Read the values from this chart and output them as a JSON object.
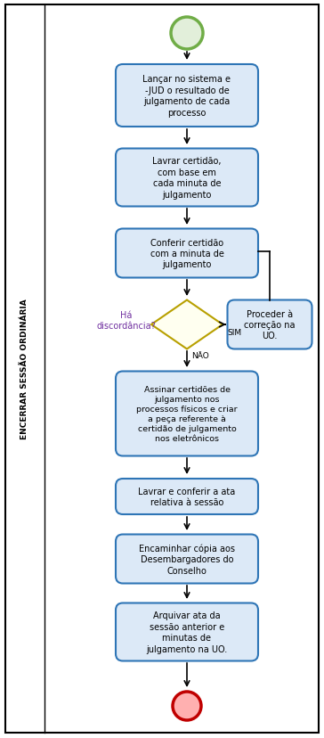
{
  "side_label": "ENCERRAR SESSÃO ORDINÁRIA",
  "bg_color": "#ffffff",
  "box_fill": "#dce9f7",
  "box_border": "#2e75b6",
  "diamond_fill": "#fffff0",
  "diamond_border": "#b8a000",
  "start_fill_outer": "#70ad47",
  "start_fill_inner": "#e2efda",
  "end_fill_outer": "#c00000",
  "end_fill_inner": "#ffb0b0",
  "arrow_color": "#000000",
  "text_color": "#000000",
  "decision_text_color": "#7030a0",
  "label_color": "#000000",
  "b1_text": "Lançar no sistema e\n-JUD o resultado de\njulgamento de cada\nprocesso",
  "b2_text": "Lavrar certidão,\ncom base em\ncada minuta de\njulgamento",
  "b3_text": "Conferir certidão\ncom a minuta de\njulgamento",
  "d1_text": "Há\ndiscordância?",
  "b4_text": "Proceder à\ncorreção na\nUO.",
  "b5_text": "Assinar certidões de\njulgamento nos\nprocessos físicos e criar\na peça referente à\ncertidão de julgamento\nnos eletrônicos",
  "b6_text": "Lavrar e conferir a ata\nrelativa à sessão",
  "b7_text": "Encaminhar cópia aos\nDesembargadores do\nConselho",
  "b8_text": "Arquivar ata da\nsessão anterior e\nminutas de\njulgamento na UO.",
  "sim_text": "SIM",
  "nao_text": "NÃO"
}
